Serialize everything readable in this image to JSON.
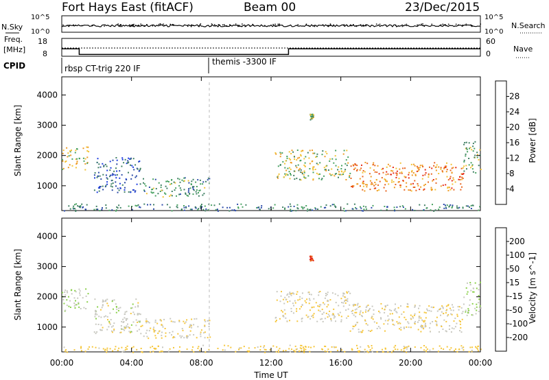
{
  "header": {
    "station": "Fort Hays East (fitACF)",
    "beam": "Beam 00",
    "date": "23/Dec/2015"
  },
  "housekeeping": {
    "nsky_label": "N.Sky",
    "nsky_ticks": [
      "10^5",
      "10^0"
    ],
    "nsearch_label": "N.Search",
    "nsearch_ticks": [
      "10^5",
      "10^0"
    ],
    "freq_label_top": "Freq.",
    "freq_label_bottom": "[MHz]",
    "freq_ticks": [
      "18",
      "8"
    ],
    "nave_label": "Nave",
    "nave_ticks": [
      "60",
      "0"
    ],
    "cpid_label": "CPID",
    "cpid_segments": [
      {
        "label": "rbsp CT-trig 220 IF",
        "start_h": 0
      },
      {
        "label": "themis -3300 IF",
        "start_h": 8.5
      }
    ]
  },
  "panels": {
    "ylabel": "Slant Range [km]",
    "y_ticks": [
      "1000",
      "2000",
      "3000",
      "4000"
    ],
    "x_ticks": [
      "00:00",
      "04:00",
      "08:00",
      "12:00",
      "16:00",
      "20:00",
      "00:00"
    ],
    "xlabel": "Time UT"
  },
  "power_scale": {
    "label": "Power [dB]",
    "ticks": [
      "4",
      "8",
      "12",
      "16",
      "20",
      "24",
      "28"
    ],
    "colors": [
      "#1a3adf",
      "#2a4aa8",
      "#3f7f63",
      "#47a160",
      "#f2c233",
      "#ee9a22",
      "#e8641e",
      "#e52a15"
    ]
  },
  "velocity_scale": {
    "label": "Velocity [m s^-1]",
    "ticks": [
      "200",
      "100",
      "50",
      "15",
      "-15",
      "-50",
      "-100",
      "-200"
    ],
    "colors": [
      "#2238c8",
      "#2f6f3a",
      "#43a047",
      "#8ad04a",
      "#c8c8c0",
      "#f6c63a",
      "#f2a02a",
      "#e8641e",
      "#e31f1a"
    ]
  },
  "chart_data": {
    "type": "heatmap",
    "title": "Fort Hays East (fitACF)",
    "xlabel": "Time UT",
    "ylabel": "Slant Range [km]",
    "xlim": [
      0,
      24
    ],
    "ylim": [
      180,
      4600
    ],
    "x_ticks": [
      "00:00",
      "04:00",
      "08:00",
      "12:00",
      "16:00",
      "20:00",
      "00:00"
    ],
    "y_ticks": [
      1000,
      2000,
      3000,
      4000
    ],
    "frequency_mhz": [
      {
        "start_h": 0,
        "end_h": 1.0,
        "value": 14.5
      },
      {
        "start_h": 1.0,
        "end_h": 13.0,
        "value": 11.3
      },
      {
        "start_h": 13.0,
        "end_h": 24,
        "value": 14.5
      }
    ],
    "scatter_regions": [
      {
        "name": "A",
        "x": [
          0,
          1.5
        ],
        "y": [
          1550,
          2300
        ],
        "power_db": 18,
        "velocity": 20
      },
      {
        "name": "B",
        "x": [
          1.8,
          4.5
        ],
        "y": [
          800,
          1950
        ],
        "power_db": 6,
        "velocity": 0
      },
      {
        "name": "C",
        "x": [
          4.5,
          8.5
        ],
        "y": [
          650,
          1300
        ],
        "power_db": 12,
        "velocity": -10
      },
      {
        "name": "D",
        "x": [
          12.2,
          16.5
        ],
        "y": [
          1200,
          2200
        ],
        "power_db": 16,
        "velocity": -10
      },
      {
        "name": "E",
        "x": [
          16.5,
          23
        ],
        "y": [
          850,
          1800
        ],
        "power_db": 24,
        "velocity": -10
      },
      {
        "name": "F",
        "x": [
          23,
          24
        ],
        "y": [
          1400,
          2500
        ],
        "power_db": 14,
        "velocity": 10
      },
      {
        "name": "G",
        "x": [
          14.2,
          14.4
        ],
        "y": [
          3200,
          3400
        ],
        "power_db": 14,
        "velocity": -200
      },
      {
        "name": "H",
        "x": [
          0,
          24
        ],
        "y": [
          180,
          420
        ],
        "power_db": 10,
        "velocity": -30
      }
    ]
  }
}
